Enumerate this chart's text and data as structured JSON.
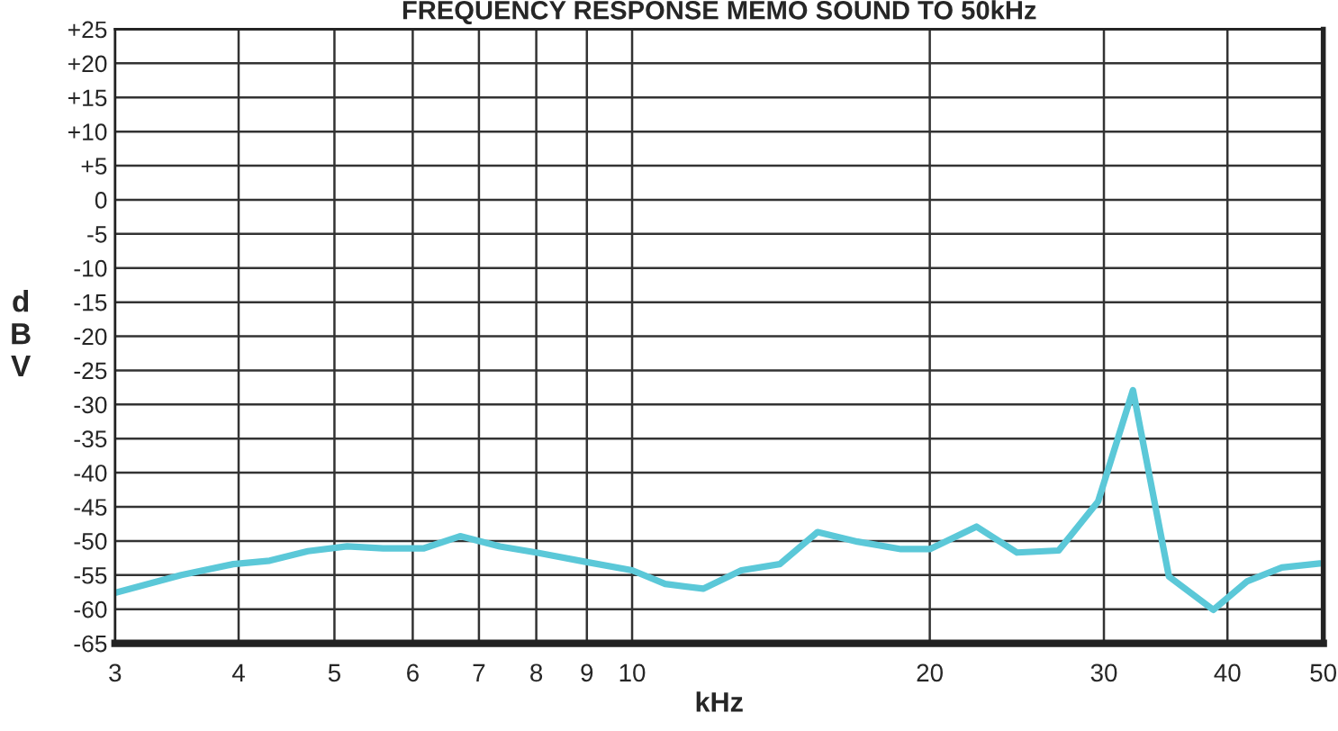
{
  "chart_data": {
    "type": "line",
    "title": "FREQUENCY RESPONSE MEMO SOUND TO 50kHz",
    "xlabel": "kHz",
    "ylabel": "d\nB\nV",
    "log": "x",
    "grid": true,
    "legend": false,
    "marker": "none",
    "line_style": "solid",
    "xlim": [
      3,
      50
    ],
    "xticks": [
      3,
      4,
      5,
      6,
      7,
      8,
      9,
      10,
      20,
      30,
      40,
      50
    ],
    "ylim": [
      -65,
      25
    ],
    "yticks": [
      {
        "value": 25,
        "label": "+25"
      },
      {
        "value": 20,
        "label": "+20"
      },
      {
        "value": 15,
        "label": "+15"
      },
      {
        "value": 10,
        "label": "+10"
      },
      {
        "value": 5,
        "label": "+5"
      },
      0,
      -5,
      -10,
      -15,
      -20,
      -25,
      -30,
      -35,
      -40,
      -45,
      -50,
      -55,
      -60,
      -65
    ],
    "series": [
      {
        "color": "#5bc8d8",
        "x": [
          3,
          3.5,
          3.95,
          4.3,
          4.7,
          5.15,
          5.6,
          6.15,
          6.7,
          7.35,
          8,
          9,
          10,
          10.8,
          11.8,
          12.9,
          14.1,
          15.4,
          16.9,
          18.7,
          20,
          22.3,
          24.5,
          27,
          29.6,
          32.1,
          34.9,
          38.7,
          41.9,
          45.4,
          49.6
        ],
        "values": [
          -57.6,
          -55,
          -53.4,
          -52.9,
          -51.5,
          -50.8,
          -51.1,
          -51.1,
          -49.3,
          -50.8,
          -51.7,
          -53.1,
          -54.3,
          -56.3,
          -57,
          -54.3,
          -53.4,
          -48.7,
          -50.1,
          -51.2,
          -51.2,
          -47.9,
          -51.7,
          -51.4,
          -44.2,
          -27.9,
          -55.2,
          -60.1,
          -55.9,
          -53.9,
          -53.3
        ]
      }
    ]
  }
}
